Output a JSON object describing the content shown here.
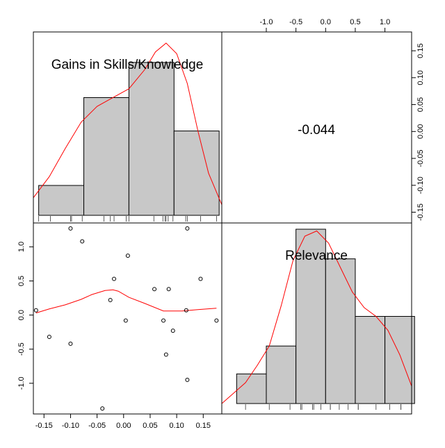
{
  "chart_data": {
    "type": "scatter-matrix",
    "variables": [
      "Gains in Skills/Knowledge",
      "Relevance"
    ],
    "correlation": {
      "label": "-0.044",
      "value": -0.044
    },
    "colors": {
      "bar_fill": "#c8c8c8",
      "curve": "#ff0000",
      "frame": "#000000"
    },
    "top_axis": {
      "ticks": [
        -1.0,
        -0.5,
        0.0,
        0.5,
        1.0
      ],
      "labels": [
        "-1.0",
        "-0.5",
        "0.0",
        "0.5",
        "1.0"
      ]
    },
    "right_axis": {
      "ticks": [
        -0.15,
        -0.1,
        -0.05,
        0.0,
        0.05,
        0.1,
        0.15
      ],
      "labels": [
        "-0.15",
        "-0.10",
        "-0.05",
        "0.00",
        "0.05",
        "0.10",
        "0.15"
      ]
    },
    "bottom_axis": {
      "ticks": [
        -0.15,
        -0.1,
        -0.05,
        0.0,
        0.05,
        0.1,
        0.15
      ],
      "labels": [
        "-0.15",
        "-0.10",
        "-0.05",
        "0.00",
        "0.05",
        "0.10",
        "0.15"
      ]
    },
    "left_axis": {
      "ticks": [
        -1.0,
        -0.5,
        0.0,
        0.5,
        1.0
      ],
      "labels": [
        "-1.0",
        "-0.5",
        "0.0",
        "0.5",
        "1.0"
      ]
    },
    "gains": {
      "xlim": [
        -0.17,
        0.185
      ],
      "histogram": {
        "breaks": [
          -0.16,
          -0.075,
          0.01,
          0.095,
          0.18
        ],
        "heights": [
          0.17,
          0.67,
          0.87,
          0.48
        ]
      },
      "density": [
        [
          -0.17,
          0.1
        ],
        [
          -0.14,
          0.22
        ],
        [
          -0.11,
          0.38
        ],
        [
          -0.08,
          0.53
        ],
        [
          -0.05,
          0.62
        ],
        [
          -0.02,
          0.67
        ],
        [
          0.01,
          0.72
        ],
        [
          0.04,
          0.83
        ],
        [
          0.06,
          0.93
        ],
        [
          0.08,
          0.98
        ],
        [
          0.1,
          0.92
        ],
        [
          0.12,
          0.75
        ],
        [
          0.14,
          0.48
        ],
        [
          0.16,
          0.24
        ],
        [
          0.185,
          0.06
        ]
      ],
      "rug": [
        -0.16,
        -0.138,
        -0.1,
        -0.098,
        -0.078,
        -0.037,
        -0.025,
        -0.018,
        0.005,
        0.01,
        0.057,
        0.074,
        0.078,
        0.08,
        0.084,
        0.093,
        0.117,
        0.12,
        0.145,
        0.175
      ]
    },
    "relevance": {
      "xlim": [
        -1.75,
        1.45
      ],
      "histogram": {
        "breaks": [
          -1.5,
          -1.0,
          -0.5,
          0.0,
          0.5,
          1.0,
          1.5
        ],
        "heights": [
          0.17,
          0.33,
          1.0,
          0.83,
          0.5,
          0.5
        ]
      },
      "density": [
        [
          -1.75,
          0.0
        ],
        [
          -1.55,
          0.06
        ],
        [
          -1.35,
          0.12
        ],
        [
          -1.15,
          0.22
        ],
        [
          -0.95,
          0.33
        ],
        [
          -0.75,
          0.56
        ],
        [
          -0.55,
          0.82
        ],
        [
          -0.35,
          0.96
        ],
        [
          -0.15,
          0.99
        ],
        [
          0.05,
          0.92
        ],
        [
          0.25,
          0.78
        ],
        [
          0.45,
          0.64
        ],
        [
          0.65,
          0.55
        ],
        [
          0.85,
          0.5
        ],
        [
          1.05,
          0.42
        ],
        [
          1.25,
          0.28
        ],
        [
          1.45,
          0.1
        ]
      ],
      "rug": [
        -1.35,
        -0.95,
        -0.6,
        -0.42,
        -0.4,
        -0.22,
        -0.2,
        -0.08,
        0.08,
        0.08,
        0.23,
        0.38,
        0.55,
        0.55,
        0.85,
        1.08,
        1.27,
        1.27
      ]
    },
    "scatter": {
      "xlim": [
        -0.17,
        0.185
      ],
      "ylim": [
        -1.45,
        1.35
      ],
      "points": [
        {
          "x": -0.165,
          "y": 0.07
        },
        {
          "x": -0.14,
          "y": -0.32
        },
        {
          "x": -0.1,
          "y": -0.42
        },
        {
          "x": -0.1,
          "y": 1.27
        },
        {
          "x": -0.078,
          "y": 1.08
        },
        {
          "x": -0.04,
          "y": -1.37
        },
        {
          "x": -0.025,
          "y": 0.22
        },
        {
          "x": -0.018,
          "y": 0.53
        },
        {
          "x": 0.004,
          "y": -0.08
        },
        {
          "x": 0.008,
          "y": 0.87
        },
        {
          "x": 0.058,
          "y": 0.38
        },
        {
          "x": 0.075,
          "y": -0.08
        },
        {
          "x": 0.08,
          "y": -0.58
        },
        {
          "x": 0.085,
          "y": 0.38
        },
        {
          "x": 0.093,
          "y": -0.23
        },
        {
          "x": 0.118,
          "y": 0.07
        },
        {
          "x": 0.12,
          "y": -0.95
        },
        {
          "x": 0.12,
          "y": 1.27
        },
        {
          "x": 0.145,
          "y": 0.53
        },
        {
          "x": 0.175,
          "y": -0.08
        }
      ],
      "smooth": [
        [
          -0.165,
          0.03
        ],
        [
          -0.14,
          0.09
        ],
        [
          -0.11,
          0.15
        ],
        [
          -0.08,
          0.23
        ],
        [
          -0.06,
          0.3
        ],
        [
          -0.035,
          0.36
        ],
        [
          -0.02,
          0.37
        ],
        [
          -0.01,
          0.35
        ],
        [
          0.01,
          0.26
        ],
        [
          0.04,
          0.17
        ],
        [
          0.075,
          0.06
        ],
        [
          0.11,
          0.06
        ],
        [
          0.14,
          0.08
        ],
        [
          0.175,
          0.1
        ]
      ]
    }
  }
}
